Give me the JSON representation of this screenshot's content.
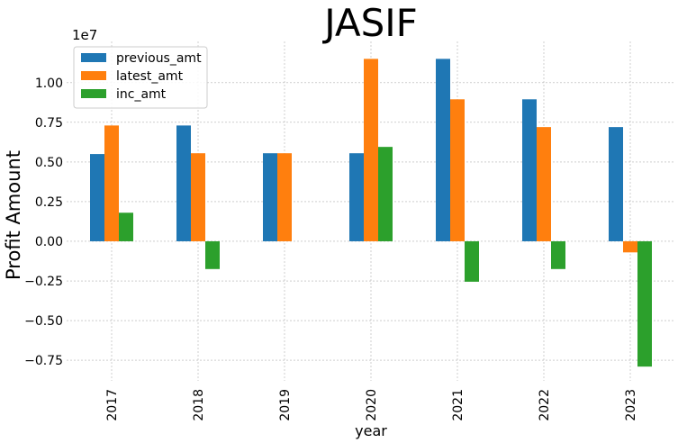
{
  "chart_data": {
    "type": "bar",
    "title": "JASIF",
    "xlabel": "year",
    "ylabel": "Profit Amount",
    "y_offset_label": "1e7",
    "categories": [
      "2017",
      "2018",
      "2019",
      "2020",
      "2021",
      "2022",
      "2023"
    ],
    "series": [
      {
        "name": "previous_amt",
        "color": "#1f77b4",
        "values": [
          5500000,
          7300000,
          5550000,
          5550000,
          11500000,
          8950000,
          7200000
        ]
      },
      {
        "name": "latest_amt",
        "color": "#ff7f0e",
        "values": [
          7300000,
          5550000,
          5550000,
          11500000,
          8950000,
          7200000,
          -700000
        ]
      },
      {
        "name": "inc_amt",
        "color": "#2ca02c",
        "values": [
          1800000,
          -1750000,
          0,
          5950000,
          -2550000,
          -1750000,
          -7900000
        ]
      }
    ],
    "ylim": [
      -8800000.0,
      12600000.0
    ],
    "yticks": [
      -7500000,
      -5000000,
      -2500000,
      0,
      2500000,
      5000000,
      7500000,
      10000000
    ],
    "ytick_labels": [
      "−0.75",
      "−0.50",
      "−0.25",
      "0.00",
      "0.25",
      "0.50",
      "0.75",
      "1.00"
    ],
    "grid": true,
    "legend_position": "top-left"
  }
}
